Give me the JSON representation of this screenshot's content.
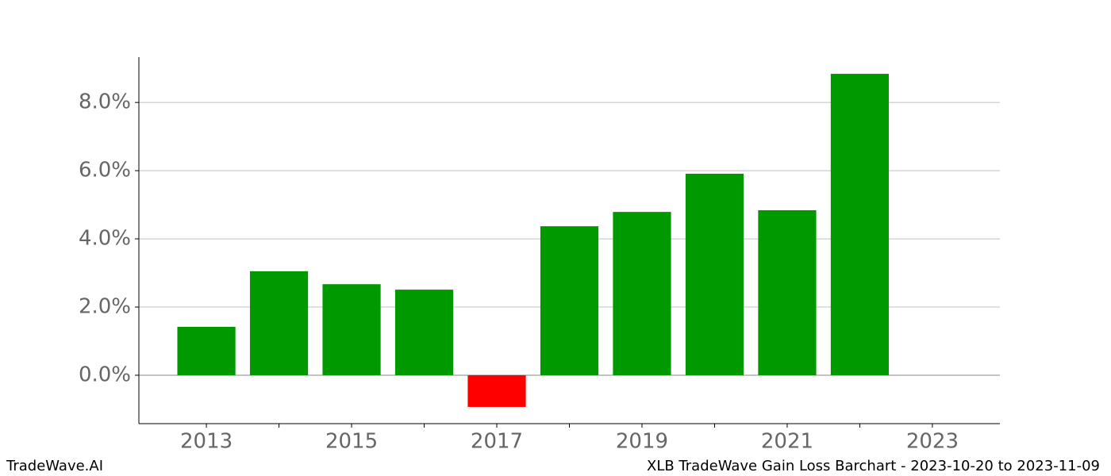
{
  "chart_data": {
    "type": "bar",
    "title": "XLB TradeWave Gain Loss Barchart - 2023-10-20 to 2023-11-09",
    "brand": "TradeWave.AI",
    "x": [
      2013,
      2014,
      2015,
      2016,
      2017,
      2018,
      2019,
      2020,
      2021,
      2022
    ],
    "values": [
      1.42,
      3.05,
      2.67,
      2.51,
      -0.93,
      4.37,
      4.79,
      5.91,
      4.84,
      8.84
    ],
    "color_positive": "#009900",
    "color_negative": "#ff0000",
    "xlim": [
      2012.07,
      2023.93
    ],
    "xticks": [
      2013,
      2015,
      2017,
      2019,
      2021,
      2023
    ],
    "xminorticks": [
      2014,
      2016,
      2018,
      2020,
      2022
    ],
    "ylim": [
      -1.42,
      9.33
    ],
    "yticks": [
      {
        "value": 0,
        "label": "0.0%"
      },
      {
        "value": 2,
        "label": "2.0%"
      },
      {
        "value": 4,
        "label": "4.0%"
      },
      {
        "value": 6,
        "label": "6.0%"
      },
      {
        "value": 8,
        "label": "8.0%"
      }
    ],
    "grid": true
  }
}
